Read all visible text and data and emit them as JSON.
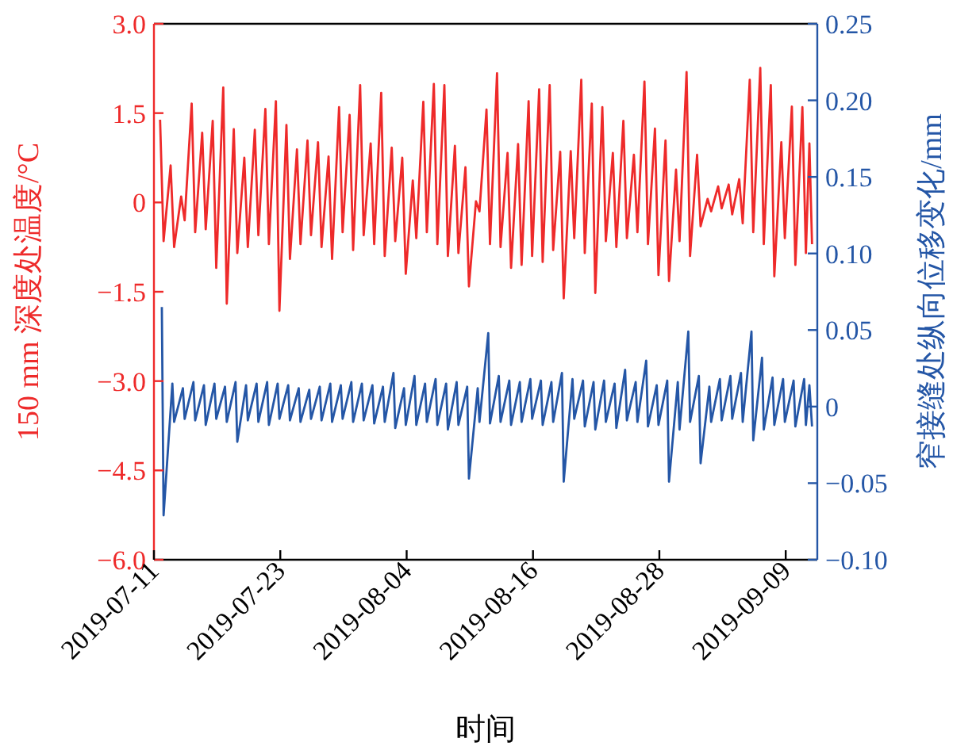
{
  "chart_data": {
    "type": "line",
    "xlabel": "时间",
    "ylabel": "150 mm 深度处温度/°C",
    "y2label": "窄接缝处纵向位移变化/mm",
    "xlim": [
      "2019-07-11",
      "2019-09-12"
    ],
    "xticks": [
      "2019-07-11",
      "2019-07-23",
      "2019-08-04",
      "2019-08-16",
      "2019-08-28",
      "2019-09-09"
    ],
    "ylim": [
      -6,
      3
    ],
    "yticks": [
      {
        "value": 3,
        "label": "3.0"
      },
      {
        "value": 1.5,
        "label": "1.5"
      },
      0,
      {
        "value": -1.5,
        "label": "−1.5"
      },
      {
        "value": -3,
        "label": "−3.0"
      },
      {
        "value": -4.5,
        "label": "−4.5"
      },
      {
        "value": -6,
        "label": "−6.0"
      }
    ],
    "y2lim": [
      -0.1,
      0.25
    ],
    "y2ticks": [
      {
        "value": 0.25,
        "label": "0.25"
      },
      {
        "value": 0.2,
        "label": "0.20"
      },
      {
        "value": 0.15,
        "label": "0.15"
      },
      {
        "value": 0.1,
        "label": "0.10"
      },
      {
        "value": 0.05,
        "label": "0.05"
      },
      0,
      {
        "value": -0.05,
        "label": "−0.05"
      },
      {
        "value": -0.1,
        "label": "−0.10"
      }
    ],
    "series": [
      {
        "color": "#ee2a2a",
        "axis": "y",
        "x": [
          "2019-07-11T14:00",
          "2019-07-11T22:00",
          "2019-07-12T14:00",
          "2019-07-12T22:00",
          "2019-07-13T14:00",
          "2019-07-13T22:00",
          "2019-07-14T14:00",
          "2019-07-14T22:00",
          "2019-07-15T14:00",
          "2019-07-15T22:00",
          "2019-07-16T14:00",
          "2019-07-16T22:00",
          "2019-07-17T14:00",
          "2019-07-17T22:00",
          "2019-07-18T14:00",
          "2019-07-18T22:00",
          "2019-07-19T14:00",
          "2019-07-19T22:00",
          "2019-07-20T14:00",
          "2019-07-20T22:00",
          "2019-07-21T14:00",
          "2019-07-21T22:00",
          "2019-07-22T14:00",
          "2019-07-22T22:00",
          "2019-07-23T14:00",
          "2019-07-23T22:00",
          "2019-07-24T14:00",
          "2019-07-24T22:00",
          "2019-07-25T14:00",
          "2019-07-25T22:00",
          "2019-07-26T14:00",
          "2019-07-26T22:00",
          "2019-07-27T14:00",
          "2019-07-27T22:00",
          "2019-07-28T14:00",
          "2019-07-28T22:00",
          "2019-07-29T14:00",
          "2019-07-29T22:00",
          "2019-07-30T14:00",
          "2019-07-30T22:00",
          "2019-07-31T14:00",
          "2019-07-31T22:00",
          "2019-08-01T14:00",
          "2019-08-01T22:00",
          "2019-08-02T14:00",
          "2019-08-02T22:00",
          "2019-08-03T14:00",
          "2019-08-03T22:00",
          "2019-08-04T14:00",
          "2019-08-04T22:00",
          "2019-08-05T14:00",
          "2019-08-05T22:00",
          "2019-08-06T14:00",
          "2019-08-06T22:00",
          "2019-08-07T14:00",
          "2019-08-07T22:00",
          "2019-08-08T14:00",
          "2019-08-08T22:00",
          "2019-08-09T14:00",
          "2019-08-09T22:00",
          "2019-08-10T14:00",
          "2019-08-10T22:00",
          "2019-08-11T14:00",
          "2019-08-11T22:00",
          "2019-08-12T14:00",
          "2019-08-12T22:00",
          "2019-08-13T14:00",
          "2019-08-13T22:00",
          "2019-08-14T14:00",
          "2019-08-14T22:00",
          "2019-08-15T14:00",
          "2019-08-15T22:00",
          "2019-08-16T14:00",
          "2019-08-16T22:00",
          "2019-08-17T14:00",
          "2019-08-17T22:00",
          "2019-08-18T14:00",
          "2019-08-18T22:00",
          "2019-08-19T14:00",
          "2019-08-19T22:00",
          "2019-08-20T14:00",
          "2019-08-20T22:00",
          "2019-08-21T14:00",
          "2019-08-21T22:00",
          "2019-08-22T14:00",
          "2019-08-22T22:00",
          "2019-08-23T14:00",
          "2019-08-23T22:00",
          "2019-08-24T14:00",
          "2019-08-24T22:00",
          "2019-08-25T14:00",
          "2019-08-25T22:00",
          "2019-08-26T14:00",
          "2019-08-26T22:00",
          "2019-08-27T14:00",
          "2019-08-27T22:00",
          "2019-08-28T14:00",
          "2019-08-28T22:00",
          "2019-08-29T14:00",
          "2019-08-29T22:00",
          "2019-08-30T14:00",
          "2019-08-30T22:00",
          "2019-08-31T14:00",
          "2019-08-31T22:00",
          "2019-09-01T14:00",
          "2019-09-01T22:00",
          "2019-09-02T14:00",
          "2019-09-02T22:00",
          "2019-09-03T14:00",
          "2019-09-03T22:00",
          "2019-09-04T14:00",
          "2019-09-04T22:00",
          "2019-09-05T14:00",
          "2019-09-05T22:00",
          "2019-09-06T14:00",
          "2019-09-06T22:00",
          "2019-09-07T14:00",
          "2019-09-07T22:00",
          "2019-09-08T14:00",
          "2019-09-08T22:00",
          "2019-09-09T14:00",
          "2019-09-09T22:00",
          "2019-09-10T14:00",
          "2019-09-10T22:00",
          "2019-09-11T06:00",
          "2019-09-11T12:00"
        ],
        "values": [
          1.39,
          -0.65,
          0.62,
          -0.75,
          0.1,
          -0.3,
          1.66,
          -0.5,
          1.17,
          -0.45,
          1.37,
          -1.1,
          1.93,
          -1.7,
          1.23,
          -0.85,
          0.75,
          -0.75,
          1.22,
          -0.55,
          1.57,
          -0.7,
          1.7,
          -1.82,
          1.3,
          -0.95,
          0.89,
          -0.7,
          1.04,
          -0.55,
          1.01,
          -0.75,
          0.77,
          -0.95,
          1.6,
          -0.5,
          1.47,
          -0.8,
          1.97,
          -0.55,
          0.99,
          -0.7,
          1.84,
          -0.9,
          0.92,
          -0.65,
          0.75,
          -1.2,
          0.37,
          -0.6,
          1.69,
          -0.5,
          1.99,
          -0.7,
          1.97,
          -0.9,
          0.95,
          -0.85,
          0.59,
          -1.41,
          0.02,
          -0.15,
          1.56,
          -0.7,
          2.17,
          -0.75,
          0.83,
          -1.1,
          0.98,
          -1.05,
          1.7,
          -0.9,
          1.9,
          -1.0,
          1.97,
          -0.8,
          0.85,
          -1.61,
          0.86,
          -0.6,
          2.06,
          -0.85,
          1.66,
          -1.52,
          1.6,
          -0.65,
          0.83,
          -0.75,
          1.37,
          -0.6,
          0.8,
          -0.5,
          2.03,
          -0.7,
          1.24,
          -1.22,
          1.04,
          -1.32,
          0.55,
          -0.65,
          2.19,
          -0.9,
          0.8,
          -0.4,
          0.06,
          -0.15,
          0.27,
          -0.1,
          0.3,
          -0.2,
          0.39,
          -0.35,
          2.06,
          -0.5,
          2.26,
          -0.7,
          1.97,
          -1.24,
          1.01,
          -0.6,
          1.61,
          -1.05,
          1.6,
          -0.85,
          0.99,
          -0.7
        ]
      },
      {
        "color": "#2456a6",
        "axis": "y2",
        "x": [
          "2019-07-11T18:00",
          "2019-07-11T22:00",
          "2019-07-12T18:00",
          "2019-07-12T22:00",
          "2019-07-13T18:00",
          "2019-07-13T22:00",
          "2019-07-14T18:00",
          "2019-07-14T22:00",
          "2019-07-15T18:00",
          "2019-07-15T22:00",
          "2019-07-16T18:00",
          "2019-07-16T22:00",
          "2019-07-17T18:00",
          "2019-07-17T22:00",
          "2019-07-18T18:00",
          "2019-07-18T22:00",
          "2019-07-19T18:00",
          "2019-07-19T22:00",
          "2019-07-20T18:00",
          "2019-07-20T22:00",
          "2019-07-21T18:00",
          "2019-07-21T22:00",
          "2019-07-22T18:00",
          "2019-07-22T22:00",
          "2019-07-23T18:00",
          "2019-07-23T22:00",
          "2019-07-24T18:00",
          "2019-07-24T22:00",
          "2019-07-25T18:00",
          "2019-07-25T22:00",
          "2019-07-26T18:00",
          "2019-07-26T22:00",
          "2019-07-27T18:00",
          "2019-07-27T22:00",
          "2019-07-28T18:00",
          "2019-07-28T22:00",
          "2019-07-29T18:00",
          "2019-07-29T22:00",
          "2019-07-30T18:00",
          "2019-07-30T22:00",
          "2019-07-31T18:00",
          "2019-07-31T22:00",
          "2019-08-01T18:00",
          "2019-08-01T22:00",
          "2019-08-02T18:00",
          "2019-08-02T22:00",
          "2019-08-03T18:00",
          "2019-08-03T22:00",
          "2019-08-04T18:00",
          "2019-08-04T22:00",
          "2019-08-05T18:00",
          "2019-08-05T22:00",
          "2019-08-06T18:00",
          "2019-08-06T22:00",
          "2019-08-07T18:00",
          "2019-08-07T22:00",
          "2019-08-08T18:00",
          "2019-08-08T22:00",
          "2019-08-09T18:00",
          "2019-08-09T22:00",
          "2019-08-10T18:00",
          "2019-08-10T22:00",
          "2019-08-11T18:00",
          "2019-08-11T22:00",
          "2019-08-12T18:00",
          "2019-08-12T22:00",
          "2019-08-13T18:00",
          "2019-08-13T22:00",
          "2019-08-14T18:00",
          "2019-08-14T22:00",
          "2019-08-15T18:00",
          "2019-08-15T22:00",
          "2019-08-16T18:00",
          "2019-08-16T22:00",
          "2019-08-17T18:00",
          "2019-08-17T22:00",
          "2019-08-18T18:00",
          "2019-08-18T22:00",
          "2019-08-19T18:00",
          "2019-08-19T22:00",
          "2019-08-20T18:00",
          "2019-08-20T22:00",
          "2019-08-21T18:00",
          "2019-08-21T22:00",
          "2019-08-22T18:00",
          "2019-08-22T22:00",
          "2019-08-23T18:00",
          "2019-08-23T22:00",
          "2019-08-24T18:00",
          "2019-08-24T22:00",
          "2019-08-25T18:00",
          "2019-08-25T22:00",
          "2019-08-26T18:00",
          "2019-08-26T22:00",
          "2019-08-27T18:00",
          "2019-08-27T22:00",
          "2019-08-28T18:00",
          "2019-08-28T22:00",
          "2019-08-29T18:00",
          "2019-08-29T22:00",
          "2019-08-30T18:00",
          "2019-08-30T22:00",
          "2019-08-31T18:00",
          "2019-08-31T22:00",
          "2019-09-01T18:00",
          "2019-09-01T22:00",
          "2019-09-02T18:00",
          "2019-09-02T22:00",
          "2019-09-03T18:00",
          "2019-09-03T22:00",
          "2019-09-04T18:00",
          "2019-09-04T22:00",
          "2019-09-05T18:00",
          "2019-09-05T22:00",
          "2019-09-06T18:00",
          "2019-09-06T22:00",
          "2019-09-07T18:00",
          "2019-09-07T22:00",
          "2019-09-08T18:00",
          "2019-09-08T22:00",
          "2019-09-09T18:00",
          "2019-09-09T22:00",
          "2019-09-10T18:00",
          "2019-09-10T22:00",
          "2019-09-11T06:00",
          "2019-09-11T12:00"
        ],
        "values": [
          0.065,
          -0.071,
          0.015,
          -0.01,
          0.012,
          -0.008,
          0.016,
          -0.009,
          0.014,
          -0.012,
          0.015,
          -0.008,
          0.013,
          -0.01,
          0.016,
          -0.023,
          0.014,
          -0.009,
          0.015,
          -0.01,
          0.016,
          -0.012,
          0.015,
          -0.008,
          0.014,
          -0.009,
          0.012,
          -0.01,
          0.011,
          -0.008,
          0.013,
          -0.009,
          0.015,
          -0.01,
          0.014,
          -0.008,
          0.016,
          -0.01,
          0.015,
          -0.009,
          0.014,
          -0.011,
          0.013,
          -0.01,
          0.022,
          -0.014,
          0.012,
          -0.012,
          0.02,
          -0.012,
          0.015,
          -0.01,
          0.018,
          -0.012,
          0.015,
          -0.015,
          0.016,
          -0.012,
          0.013,
          -0.047,
          0.012,
          -0.01,
          0.048,
          -0.011,
          0.02,
          -0.01,
          0.017,
          -0.012,
          0.016,
          -0.01,
          0.018,
          -0.008,
          0.017,
          -0.012,
          0.016,
          -0.01,
          0.022,
          -0.049,
          0.018,
          -0.008,
          0.017,
          -0.013,
          0.016,
          -0.015,
          0.017,
          -0.01,
          0.015,
          -0.014,
          0.024,
          -0.009,
          0.016,
          -0.01,
          0.03,
          -0.013,
          0.014,
          -0.012,
          0.017,
          -0.049,
          0.016,
          -0.015,
          0.049,
          -0.01,
          0.02,
          -0.037,
          0.013,
          -0.01,
          0.018,
          -0.009,
          0.02,
          -0.008,
          0.022,
          -0.01,
          0.049,
          -0.022,
          0.032,
          -0.015,
          0.019,
          -0.012,
          0.018,
          -0.01,
          0.017,
          -0.013,
          0.018,
          -0.012,
          0.014,
          -0.013
        ]
      }
    ]
  }
}
